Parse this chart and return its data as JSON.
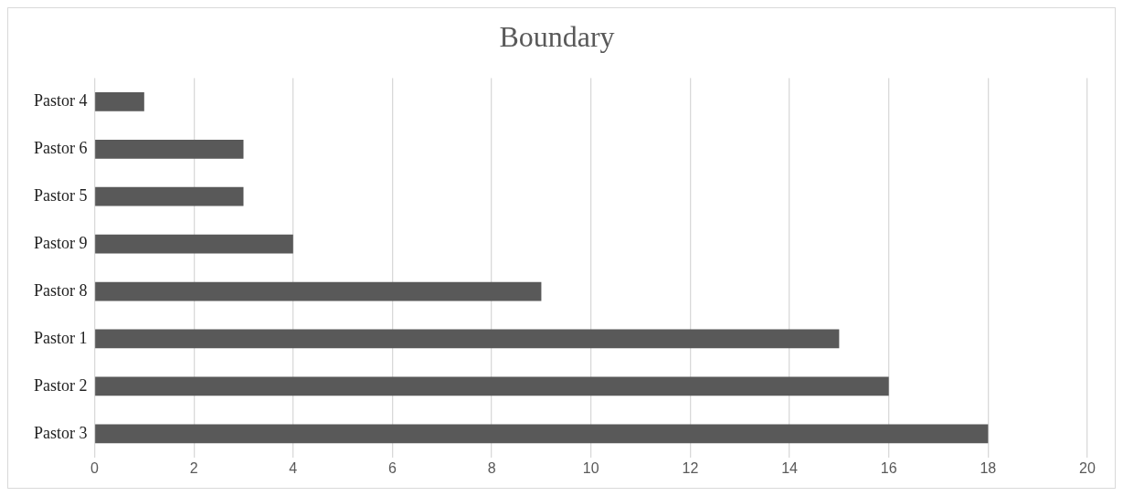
{
  "chart_data": {
    "type": "bar",
    "title": "Boundary",
    "orientation": "horizontal",
    "categories": [
      "Pastor 4",
      "Pastor 6",
      "Pastor 5",
      "Pastor 9",
      "Pastor 8",
      "Pastor 1",
      "Pastor 2",
      "Pastor 3"
    ],
    "values": [
      1,
      3,
      3,
      4,
      9,
      15,
      16,
      18
    ],
    "color": "#595959",
    "xlim": [
      0,
      20
    ],
    "xticks": [
      0,
      2,
      4,
      6,
      8,
      10,
      12,
      14,
      16,
      18,
      20
    ],
    "grid": "x",
    "legend": false
  }
}
